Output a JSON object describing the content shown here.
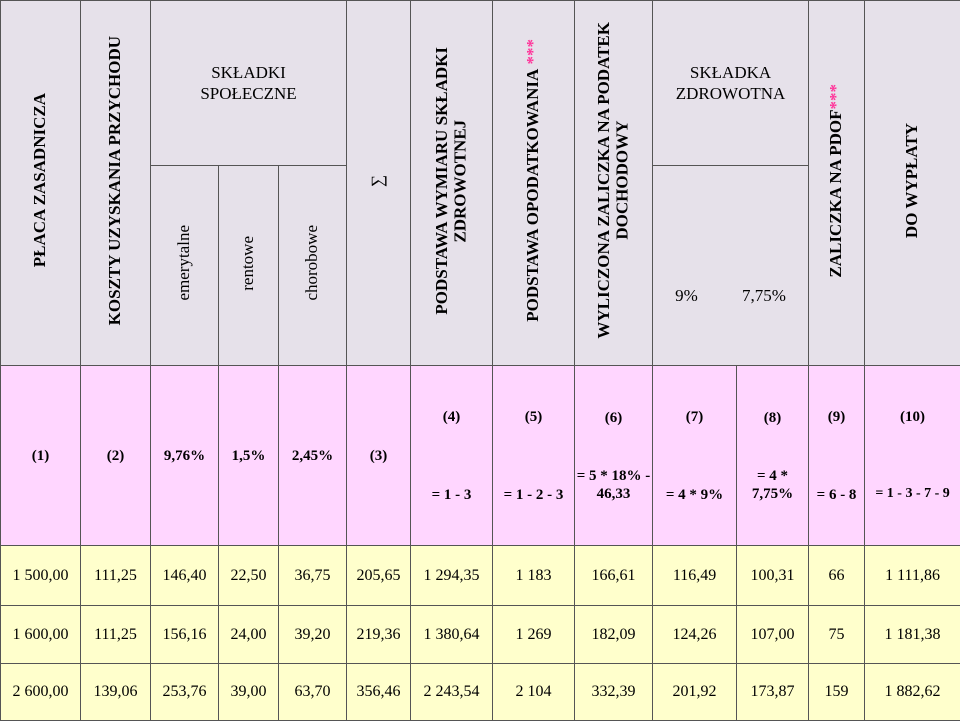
{
  "headers": {
    "placa": "PŁACA ZASADNICZA",
    "koszty": "KOSZTY UZYSKANIA PRZYCHODU",
    "skladki_spoleczne": "SKŁADKI\nSPOŁECZNE",
    "emerytalne": "emerytalne",
    "rentowe": "rentowe",
    "chorobowe": "chorobowe",
    "sigma": "∑",
    "podstawa_zdrowotnej_line1": "PODSTAWA WYMIARU SKŁADKI",
    "podstawa_zdrowotnej_line2": "ZDROWOTNEJ",
    "podstawa_opodatkowania": "PODSTAWA OPODATKOWANIA",
    "stars": "***",
    "wyliczona_line1": "WYLICZONA ZALICZKA NA PODATEK",
    "wyliczona_line2": "DOCHODOWY",
    "skladka_zdrowotna": "SKŁADKA\nZDROWOTNA",
    "pct_9": "9%",
    "pct_775": "7,75%",
    "zaliczka_pdof": "ZALICZKA NA PDOF",
    "do_wyplaty": "DO WYPŁATY"
  },
  "codes_top": [
    "(4)",
    "(5)",
    "(6)",
    "(7)",
    "(8)",
    "(9)",
    "(10)"
  ],
  "codes_left": [
    "(1)",
    "(2)",
    "9,76%",
    "1,5%",
    "2,45%",
    "(3)"
  ],
  "formulas": [
    "= 1 - 3",
    "= 1 - 2 - 3",
    "= 5 * 18% -\n46,33",
    "= 4 * 9%",
    "= 4 *\n7,75%",
    "= 6 - 8",
    "= 1 - 3 - 7 - 9"
  ],
  "rows": [
    [
      "1 500,00",
      "111,25",
      "146,40",
      "22,50",
      "36,75",
      "205,65",
      "1 294,35",
      "1 183",
      "166,61",
      "116,49",
      "100,31",
      "66",
      "1 111,86"
    ],
    [
      "1 600,00",
      "111,25",
      "156,16",
      "24,00",
      "39,20",
      "219,36",
      "1 380,64",
      "1 269",
      "182,09",
      "124,26",
      "107,00",
      "75",
      "1 181,38"
    ],
    [
      "2 600,00",
      "139,06",
      "253,76",
      "39,00",
      "63,70",
      "356,46",
      "2 243,54",
      "2 104",
      "332,39",
      "201,92",
      "173,87",
      "159",
      "1 882,62"
    ]
  ],
  "colors": {
    "header_bg": "#e6e1ea",
    "pink_bg": "#ffd6ff",
    "yellow_bg": "#ffffcc",
    "star": "#ff3399"
  }
}
